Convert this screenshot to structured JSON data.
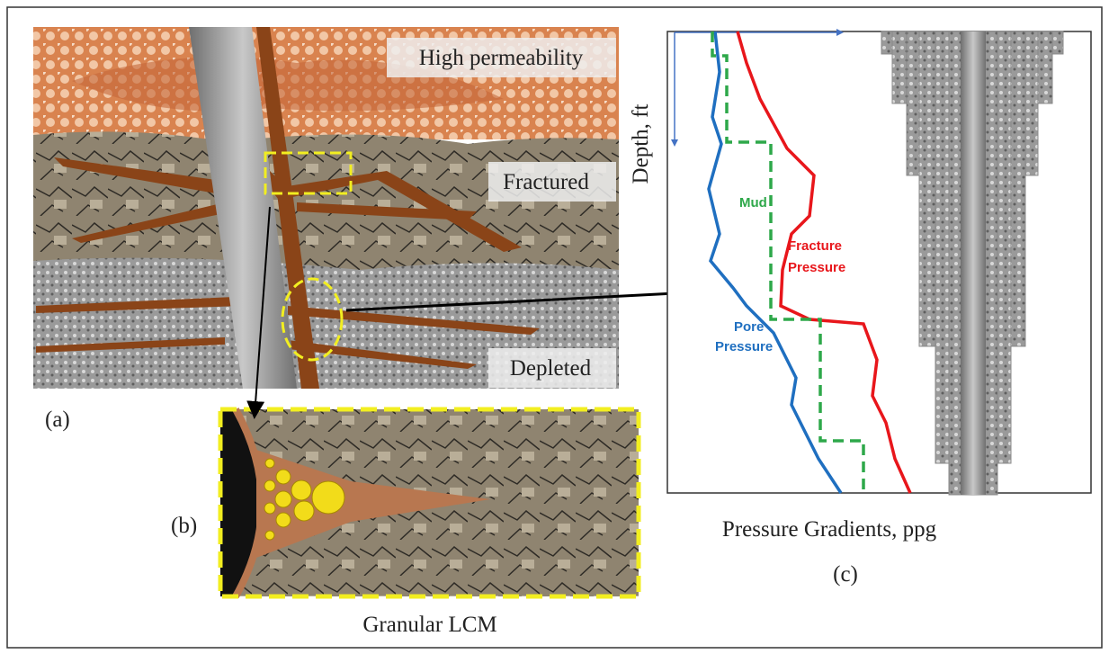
{
  "panel_a": {
    "layers": [
      "High permeability",
      "Fractured",
      "Depleted"
    ],
    "caption": "(a)"
  },
  "panel_b": {
    "caption": "(b)",
    "title": "Granular LCM"
  },
  "panel_c": {
    "y_axis_label": "Depth, ft",
    "x_axis_label": "Pressure Gradients, ppg",
    "caption": "(c)",
    "curve_labels": {
      "mud": [
        "Mud"
      ],
      "fracture": [
        "Fracture",
        "Pressure"
      ],
      "pore": [
        "Pore",
        "Pressure"
      ]
    }
  }
}
